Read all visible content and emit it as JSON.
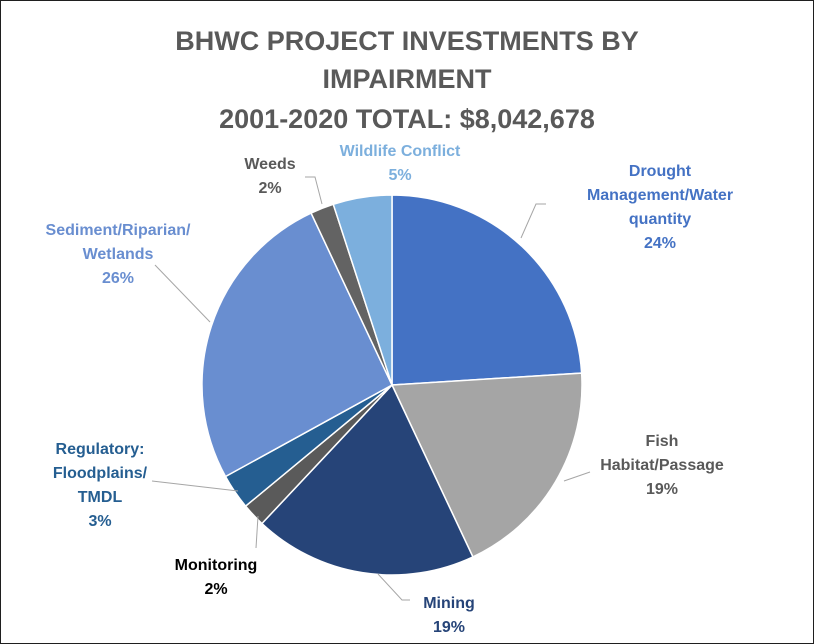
{
  "chart_data": {
    "type": "pie",
    "title_lines": [
      "BHWC PROJECT INVESTMENTS BY",
      "IMPAIRMENT",
      "2001-2020 TOTAL: $8,042,678"
    ],
    "slices": [
      {
        "label_lines": [
          "Drought",
          "Management/Water",
          "quantity"
        ],
        "pct_text": "24%",
        "value": 24,
        "color": "#4472c4",
        "label_color": "#4472c4"
      },
      {
        "label_lines": [
          "Fish",
          "Habitat/Passage"
        ],
        "pct_text": "19%",
        "value": 19,
        "color": "#a5a5a5",
        "label_color": "#595959"
      },
      {
        "label_lines": [
          "Mining"
        ],
        "pct_text": "19%",
        "value": 19,
        "color": "#264478",
        "label_color": "#264478"
      },
      {
        "label_lines": [
          "Monitoring"
        ],
        "pct_text": "2%",
        "value": 2,
        "color": "#5a5a5a",
        "label_color": "#000000"
      },
      {
        "label_lines": [
          "Regulatory:",
          "Floodplains/",
          "TMDL"
        ],
        "pct_text": "3%",
        "value": 3,
        "color": "#255e91",
        "label_color": "#255e91"
      },
      {
        "label_lines": [
          "Sediment/Riparian/",
          "Wetlands"
        ],
        "pct_text": "26%",
        "value": 26,
        "color": "#698ed0",
        "label_color": "#698ed0"
      },
      {
        "label_lines": [
          "Weeds"
        ],
        "pct_text": "2%",
        "value": 2,
        "color": "#636363",
        "label_color": "#595959"
      },
      {
        "label_lines": [
          "Wildlife Conflict"
        ],
        "pct_text": "5%",
        "value": 5,
        "color": "#7cafdd",
        "label_color": "#7cafdd"
      }
    ]
  }
}
